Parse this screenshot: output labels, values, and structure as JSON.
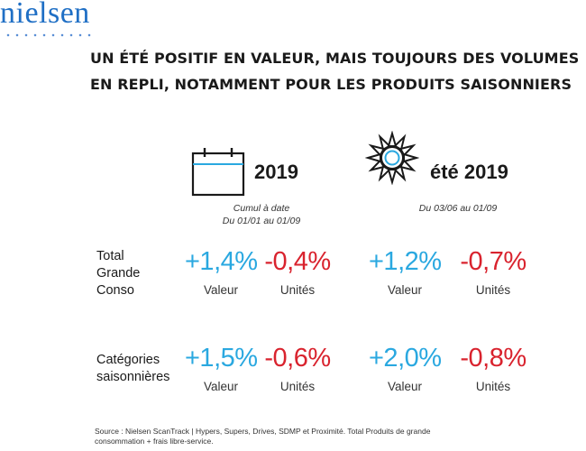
{
  "brand": {
    "logo_text": "nielsen"
  },
  "headline": {
    "line1": "Un été positif en valeur, mais toujours des volumes",
    "line2": "en repli, notamment pour les produits saisonniers"
  },
  "columns": [
    {
      "icon": "calendar-icon",
      "title": "2019",
      "period_line1": "Cumul à date",
      "period_line2": "Du 01/01 au 01/09"
    },
    {
      "icon": "sun-icon",
      "title": "été 2019",
      "period_line1": "Du 03/06 au 01/09",
      "period_line2": ""
    }
  ],
  "metric_labels": {
    "value": "Valeur",
    "units": "Unités"
  },
  "rows": [
    {
      "label_lines": [
        "Total",
        "Grande",
        "Conso"
      ]
    },
    {
      "label_lines": [
        "Catégories",
        "saisonnières"
      ]
    }
  ],
  "chart_data": {
    "type": "table",
    "rows": [
      "Total Grande Conso",
      "Catégories saisonnières"
    ],
    "columns": [
      "2019 (Cumul à date, du 01/01 au 01/09)",
      "été 2019 (du 03/06 au 01/09)"
    ],
    "metrics": [
      "Valeur",
      "Unités"
    ],
    "values": [
      [
        {
          "valeur": "+1,4%",
          "unites": "-0,4%"
        },
        {
          "valeur": "+1,2%",
          "unites": "-0,7%"
        }
      ],
      [
        {
          "valeur": "+1,5%",
          "unites": "-0,6%"
        },
        {
          "valeur": "+2,0%",
          "unites": "-0,8%"
        }
      ]
    ]
  },
  "colors": {
    "positive": "#2aa8e0",
    "negative": "#d9232e",
    "brand": "#1f6fc5"
  },
  "source": {
    "line1": "Source : Nielsen ScanTrack | Hypers, Supers, Drives, SDMP et Proximité. Total Produits de grande",
    "line2": "consommation + frais libre-service."
  }
}
